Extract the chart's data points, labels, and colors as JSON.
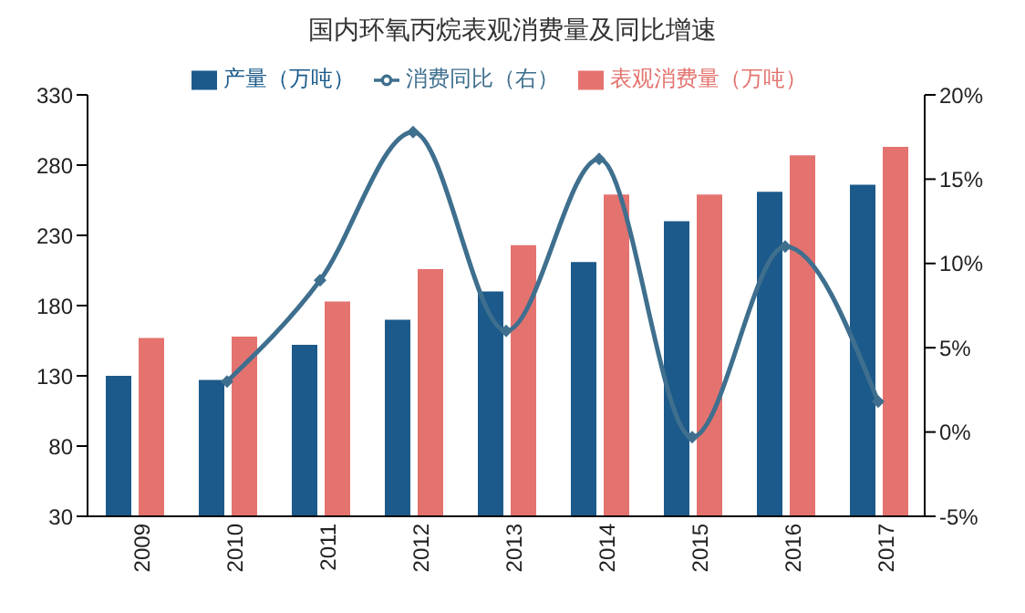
{
  "chart_data": {
    "type": "bar",
    "title": "国内环氧丙烷表观消费量及同比增速",
    "categories": [
      "2009",
      "2010",
      "2011",
      "2012",
      "2013",
      "2014",
      "2015",
      "2016",
      "2017"
    ],
    "series": [
      {
        "name": "产量（万吨）",
        "color": "#1b5a8a",
        "values": [
          130,
          127,
          152,
          170,
          190,
          211,
          240,
          261,
          266
        ]
      },
      {
        "name": "表观消费量（万吨）",
        "color": "#e4736f",
        "values": [
          157,
          158,
          183,
          206,
          223,
          259,
          259,
          287,
          293
        ]
      },
      {
        "name": "消费同比（右）",
        "type": "line",
        "axis": "y2",
        "color": "#3f6f8e",
        "marker": "diamond",
        "values": [
          null,
          3,
          9,
          17.8,
          6,
          16.2,
          -0.3,
          11,
          1.8
        ]
      }
    ],
    "ylim": [
      30,
      330
    ],
    "yticks": [
      30,
      80,
      130,
      180,
      230,
      280,
      330
    ],
    "y2lim": [
      -5,
      20
    ],
    "y2ticks": [
      {
        "value": -5,
        "label": "-5%"
      },
      {
        "value": 0,
        "label": "0%"
      },
      {
        "value": 5,
        "label": "5%"
      },
      {
        "value": 10,
        "label": "10%"
      },
      {
        "value": 15,
        "label": "15%"
      },
      {
        "value": 20,
        "label": "20%"
      }
    ],
    "legend": "top"
  }
}
